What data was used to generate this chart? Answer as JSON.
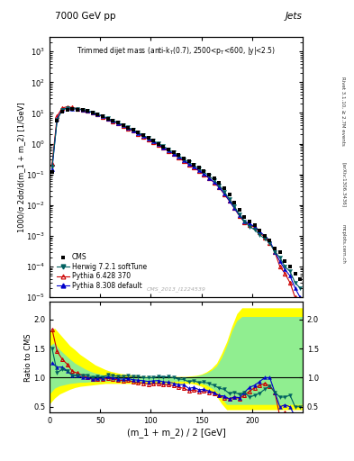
{
  "title_top": "7000 GeV pp",
  "title_right": "Jets",
  "plot_title": "Trimmed dijet mass (anti-k_{T}(0.7), 2500<p_{T}<600, |y|<2.5)",
  "xlabel": "(m_1 + m_2) / 2 [GeV]",
  "ylabel_main": "1000/σ 2dσ/d(m_1 + m_2) [1/GeV]",
  "ylabel_ratio": "Ratio to CMS",
  "watermark": "CMS_2013_I1224539",
  "right_label": "Rivet 3.1.10, ≥ 2.7M events",
  "arxiv_label": "[arXiv:1306.3436]",
  "mcplots_label": "mcplots.cern.ch",
  "xlim": [
    0,
    250
  ],
  "ylim_main": [
    1e-05,
    3000.0
  ],
  "ylim_ratio": [
    0.4,
    2.3
  ],
  "x_data": [
    2.5,
    7.5,
    12.5,
    17.5,
    22.5,
    27.5,
    32.5,
    37.5,
    42.5,
    47.5,
    52.5,
    57.5,
    62.5,
    67.5,
    72.5,
    77.5,
    82.5,
    87.5,
    92.5,
    97.5,
    102.5,
    107.5,
    112.5,
    117.5,
    122.5,
    127.5,
    132.5,
    137.5,
    142.5,
    147.5,
    152.5,
    157.5,
    162.5,
    167.5,
    172.5,
    177.5,
    182.5,
    187.5,
    192.5,
    197.5,
    202.5,
    207.5,
    212.5,
    217.5,
    222.5,
    227.5,
    232.5,
    237.5,
    242.5,
    247.5
  ],
  "cms_y": [
    0.12,
    5.5,
    11.0,
    13.0,
    13.5,
    13.0,
    12.5,
    11.5,
    10.5,
    9.0,
    7.8,
    6.5,
    5.5,
    4.8,
    4.0,
    3.3,
    2.8,
    2.3,
    1.9,
    1.55,
    1.25,
    1.0,
    0.82,
    0.65,
    0.52,
    0.42,
    0.33,
    0.27,
    0.21,
    0.17,
    0.13,
    0.1,
    0.075,
    0.055,
    0.035,
    0.022,
    0.012,
    0.007,
    0.004,
    0.003,
    0.0023,
    0.0015,
    0.001,
    0.0007,
    0.0004,
    0.0003,
    0.00015,
    0.0001,
    6e-05,
    4e-05
  ],
  "herwig_y": [
    0.18,
    6.0,
    12.5,
    14.5,
    14.0,
    13.5,
    13.0,
    12.0,
    10.5,
    9.2,
    7.9,
    6.8,
    5.7,
    4.9,
    4.1,
    3.4,
    2.85,
    2.35,
    1.9,
    1.55,
    1.25,
    1.02,
    0.83,
    0.66,
    0.52,
    0.41,
    0.32,
    0.25,
    0.2,
    0.155,
    0.12,
    0.09,
    0.065,
    0.045,
    0.028,
    0.016,
    0.009,
    0.005,
    0.003,
    0.002,
    0.0016,
    0.0011,
    0.0008,
    0.0006,
    0.0003,
    0.0002,
    0.0001,
    7e-05,
    3e-05,
    2e-05
  ],
  "pythia6_y": [
    0.22,
    8.0,
    14.5,
    16.0,
    15.0,
    14.0,
    13.0,
    11.5,
    10.2,
    8.8,
    7.6,
    6.4,
    5.4,
    4.6,
    3.8,
    3.15,
    2.6,
    2.1,
    1.72,
    1.38,
    1.12,
    0.9,
    0.72,
    0.57,
    0.45,
    0.35,
    0.27,
    0.21,
    0.165,
    0.13,
    0.1,
    0.075,
    0.055,
    0.038,
    0.023,
    0.014,
    0.008,
    0.0045,
    0.0028,
    0.0023,
    0.0019,
    0.0013,
    0.0009,
    0.0006,
    0.0003,
    0.0001,
    6e-05,
    3e-05,
    1e-05,
    5e-06
  ],
  "pythia8_y": [
    0.15,
    6.5,
    13.0,
    14.5,
    14.0,
    13.5,
    12.5,
    11.5,
    10.2,
    8.9,
    7.7,
    6.6,
    5.5,
    4.7,
    3.9,
    3.25,
    2.7,
    2.2,
    1.8,
    1.45,
    1.18,
    0.95,
    0.76,
    0.6,
    0.47,
    0.37,
    0.29,
    0.22,
    0.175,
    0.135,
    0.104,
    0.077,
    0.056,
    0.038,
    0.024,
    0.014,
    0.008,
    0.0046,
    0.003,
    0.0025,
    0.002,
    0.0014,
    0.001,
    0.0007,
    0.0003,
    0.00015,
    8e-05,
    5e-05,
    2e-05,
    1e-05
  ],
  "ratio_herwig": [
    1.5,
    1.09,
    1.14,
    1.115,
    1.037,
    1.038,
    1.04,
    1.043,
    1.0,
    1.022,
    1.013,
    1.046,
    1.036,
    1.021,
    1.025,
    1.03,
    1.018,
    1.022,
    1.0,
    1.0,
    1.0,
    1.02,
    1.012,
    1.015,
    1.0,
    0.976,
    0.97,
    0.926,
    0.952,
    0.912,
    0.923,
    0.9,
    0.867,
    0.818,
    0.8,
    0.727,
    0.75,
    0.714,
    0.75,
    0.667,
    0.696,
    0.733,
    0.8,
    0.857,
    0.75,
    0.667,
    0.667,
    0.7,
    0.5,
    0.5
  ],
  "ratio_pythia6": [
    1.83,
    1.45,
    1.318,
    1.23,
    1.11,
    1.077,
    1.04,
    1.0,
    0.971,
    0.978,
    0.974,
    0.985,
    0.982,
    0.958,
    0.95,
    0.955,
    0.929,
    0.913,
    0.905,
    0.89,
    0.896,
    0.9,
    0.878,
    0.877,
    0.865,
    0.833,
    0.818,
    0.778,
    0.786,
    0.765,
    0.769,
    0.75,
    0.733,
    0.691,
    0.657,
    0.636,
    0.667,
    0.643,
    0.7,
    0.767,
    0.826,
    0.867,
    0.9,
    0.857,
    0.75,
    0.333,
    0.4,
    0.3,
    0.167,
    0.125
  ],
  "ratio_pythia8": [
    1.25,
    1.18,
    1.182,
    1.115,
    1.037,
    1.038,
    1.0,
    1.0,
    0.971,
    0.989,
    0.987,
    1.015,
    1.0,
    0.979,
    0.975,
    0.985,
    0.964,
    0.957,
    0.947,
    0.935,
    0.944,
    0.95,
    0.927,
    0.923,
    0.904,
    0.881,
    0.879,
    0.815,
    0.833,
    0.794,
    0.8,
    0.77,
    0.747,
    0.691,
    0.686,
    0.636,
    0.667,
    0.657,
    0.75,
    0.833,
    0.87,
    0.933,
    1.0,
    1.0,
    0.75,
    0.5,
    0.533,
    0.5,
    0.333,
    0.25
  ],
  "band_x": [
    0,
    5,
    10,
    15,
    20,
    25,
    30,
    35,
    40,
    45,
    50,
    55,
    60,
    65,
    70,
    75,
    80,
    85,
    90,
    95,
    100,
    105,
    110,
    115,
    120,
    125,
    130,
    135,
    140,
    145,
    150,
    155,
    160,
    165,
    170,
    175,
    180,
    185,
    190,
    195,
    200,
    205,
    210,
    215,
    220,
    225,
    230,
    235,
    240,
    245,
    250
  ],
  "band_yellow_lo": [
    0.55,
    0.65,
    0.72,
    0.76,
    0.8,
    0.83,
    0.85,
    0.86,
    0.87,
    0.88,
    0.89,
    0.9,
    0.9,
    0.9,
    0.9,
    0.9,
    0.9,
    0.9,
    0.9,
    0.9,
    0.9,
    0.9,
    0.9,
    0.9,
    0.9,
    0.9,
    0.9,
    0.9,
    0.9,
    0.88,
    0.85,
    0.8,
    0.75,
    0.68,
    0.55,
    0.45,
    0.45,
    0.45,
    0.45,
    0.45,
    0.45,
    0.45,
    0.45,
    0.45,
    0.45,
    0.45,
    0.45,
    0.45,
    0.45,
    0.45,
    0.45
  ],
  "band_yellow_hi": [
    1.8,
    1.85,
    1.75,
    1.65,
    1.55,
    1.48,
    1.4,
    1.34,
    1.28,
    1.22,
    1.18,
    1.14,
    1.11,
    1.09,
    1.07,
    1.06,
    1.05,
    1.04,
    1.03,
    1.02,
    1.02,
    1.02,
    1.02,
    1.02,
    1.02,
    1.02,
    1.02,
    1.02,
    1.03,
    1.04,
    1.06,
    1.1,
    1.16,
    1.25,
    1.42,
    1.62,
    1.88,
    2.1,
    2.2,
    2.2,
    2.2,
    2.2,
    2.2,
    2.2,
    2.2,
    2.2,
    2.2,
    2.2,
    2.2,
    2.2,
    2.2
  ],
  "band_green_lo": [
    0.72,
    0.82,
    0.86,
    0.88,
    0.9,
    0.91,
    0.92,
    0.92,
    0.93,
    0.93,
    0.93,
    0.94,
    0.94,
    0.94,
    0.94,
    0.94,
    0.94,
    0.94,
    0.94,
    0.94,
    0.94,
    0.94,
    0.94,
    0.94,
    0.94,
    0.94,
    0.94,
    0.94,
    0.93,
    0.92,
    0.9,
    0.87,
    0.82,
    0.76,
    0.64,
    0.54,
    0.54,
    0.54,
    0.54,
    0.54,
    0.54,
    0.54,
    0.54,
    0.54,
    0.54,
    0.54,
    0.54,
    0.54,
    0.54,
    0.54,
    0.54
  ],
  "band_green_hi": [
    1.55,
    1.6,
    1.48,
    1.4,
    1.32,
    1.25,
    1.2,
    1.15,
    1.11,
    1.08,
    1.06,
    1.04,
    1.03,
    1.02,
    1.02,
    1.01,
    1.01,
    1.01,
    1.01,
    1.01,
    1.01,
    1.01,
    1.01,
    1.01,
    1.01,
    1.01,
    1.01,
    1.01,
    1.02,
    1.03,
    1.05,
    1.08,
    1.13,
    1.2,
    1.35,
    1.55,
    1.8,
    1.98,
    2.05,
    2.05,
    2.05,
    2.05,
    2.05,
    2.05,
    2.05,
    2.05,
    2.05,
    2.05,
    2.05,
    2.05,
    2.05
  ],
  "color_cms": "#000000",
  "color_herwig": "#006060",
  "color_pythia6": "#cc0000",
  "color_pythia8": "#0000cc",
  "color_yellow_band": "#ffff00",
  "color_green_band": "#90ee90",
  "bg_color": "#ffffff",
  "legend_cms": "CMS",
  "legend_herwig": "Herwig 7.2.1 softTune",
  "legend_pythia6": "Pythia 6.428 370",
  "legend_pythia8": "Pythia 8.308 default",
  "xticks": [
    0,
    50,
    100,
    150,
    200
  ],
  "yticks_ratio": [
    0.5,
    1.0,
    1.5,
    2.0
  ]
}
